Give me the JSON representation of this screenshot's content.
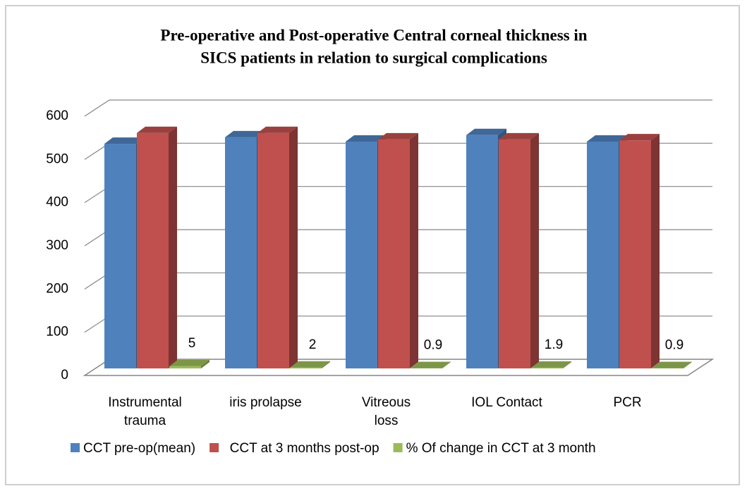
{
  "chart_data": {
    "type": "bar3d",
    "title": "Pre-operative and Post-operative Central corneal thickness in",
    "subtitle": "SICS patients in relation   to surgical complications",
    "categories": [
      "Instrumental\ntrauma",
      "iris prolapse",
      "Vitreous\nloss",
      "IOL Contact",
      "PCR"
    ],
    "series": [
      {
        "name": "CCT pre-op(mean)",
        "color": "#4f81bd",
        "values": [
          520,
          535,
          525,
          540,
          525
        ]
      },
      {
        "name": "  CCT at 3 months post-op",
        "color": "#c0504d",
        "values": [
          545,
          545,
          530,
          530,
          528
        ]
      },
      {
        "name": "% Of change in CCT at 3 month",
        "color": "#9bbb59",
        "values": [
          5,
          2,
          0.9,
          1.9,
          0.9
        ],
        "show_labels": true
      }
    ],
    "ylim": [
      0,
      600
    ],
    "yticks": [
      0,
      100,
      200,
      300,
      400,
      500,
      600
    ],
    "grid": true,
    "legend": "bottom"
  }
}
